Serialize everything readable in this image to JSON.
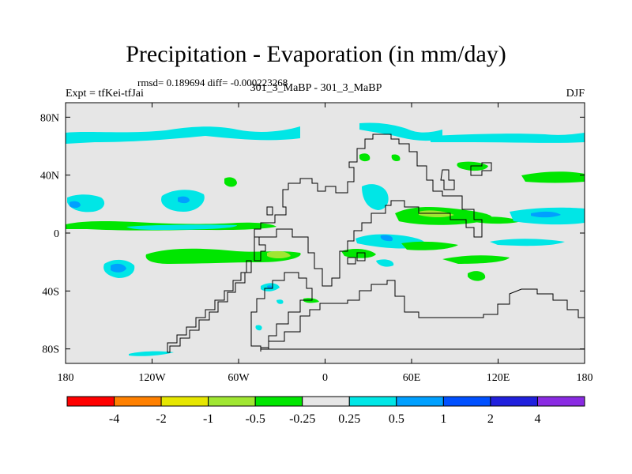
{
  "title": "Precipitation - Evaporation (in mm/day)",
  "stats": "rmsd= 0.189694 diff= -0.000223268",
  "left_label": "Expt = tfKei-tfJai",
  "center_label": "301_3_MaBP - 301_3_MaBP",
  "right_label": "DJF",
  "colors": {
    "background": "#e6e6e6",
    "coastline": "#000000"
  },
  "map": {
    "projection": "cylindrical equidistant",
    "lon_range": [
      -180,
      180
    ],
    "lat_range": [
      -90,
      90
    ],
    "lat_ticks": [
      {
        "value": 80,
        "label": "80N"
      },
      {
        "value": 40,
        "label": "40N"
      },
      {
        "value": 0,
        "label": "0"
      },
      {
        "value": -40,
        "label": "40S"
      },
      {
        "value": -80,
        "label": "80S"
      }
    ],
    "lon_ticks": [
      {
        "value": -180,
        "label": "180"
      },
      {
        "value": -120,
        "label": "120W"
      },
      {
        "value": -60,
        "label": "60W"
      },
      {
        "value": 0,
        "label": "0"
      },
      {
        "value": 60,
        "label": "60E"
      },
      {
        "value": 120,
        "label": "120E"
      },
      {
        "value": 180,
        "label": "180"
      }
    ]
  },
  "colorbar": {
    "bins": [
      {
        "color": "#ff0000"
      },
      {
        "color": "#ff8000"
      },
      {
        "color": "#e6e600"
      },
      {
        "color": "#a0e632"
      },
      {
        "color": "#00e600"
      },
      {
        "color": "#e6e6e6"
      },
      {
        "color": "#00e6e6"
      },
      {
        "color": "#00a0ff"
      },
      {
        "color": "#0050ff"
      },
      {
        "color": "#2020dd"
      },
      {
        "color": "#8a2be2"
      }
    ],
    "labels": [
      "-4",
      "-2",
      "-1",
      "-0.5",
      "-0.25",
      "0.25",
      "0.5",
      "1",
      "2",
      "4"
    ]
  }
}
